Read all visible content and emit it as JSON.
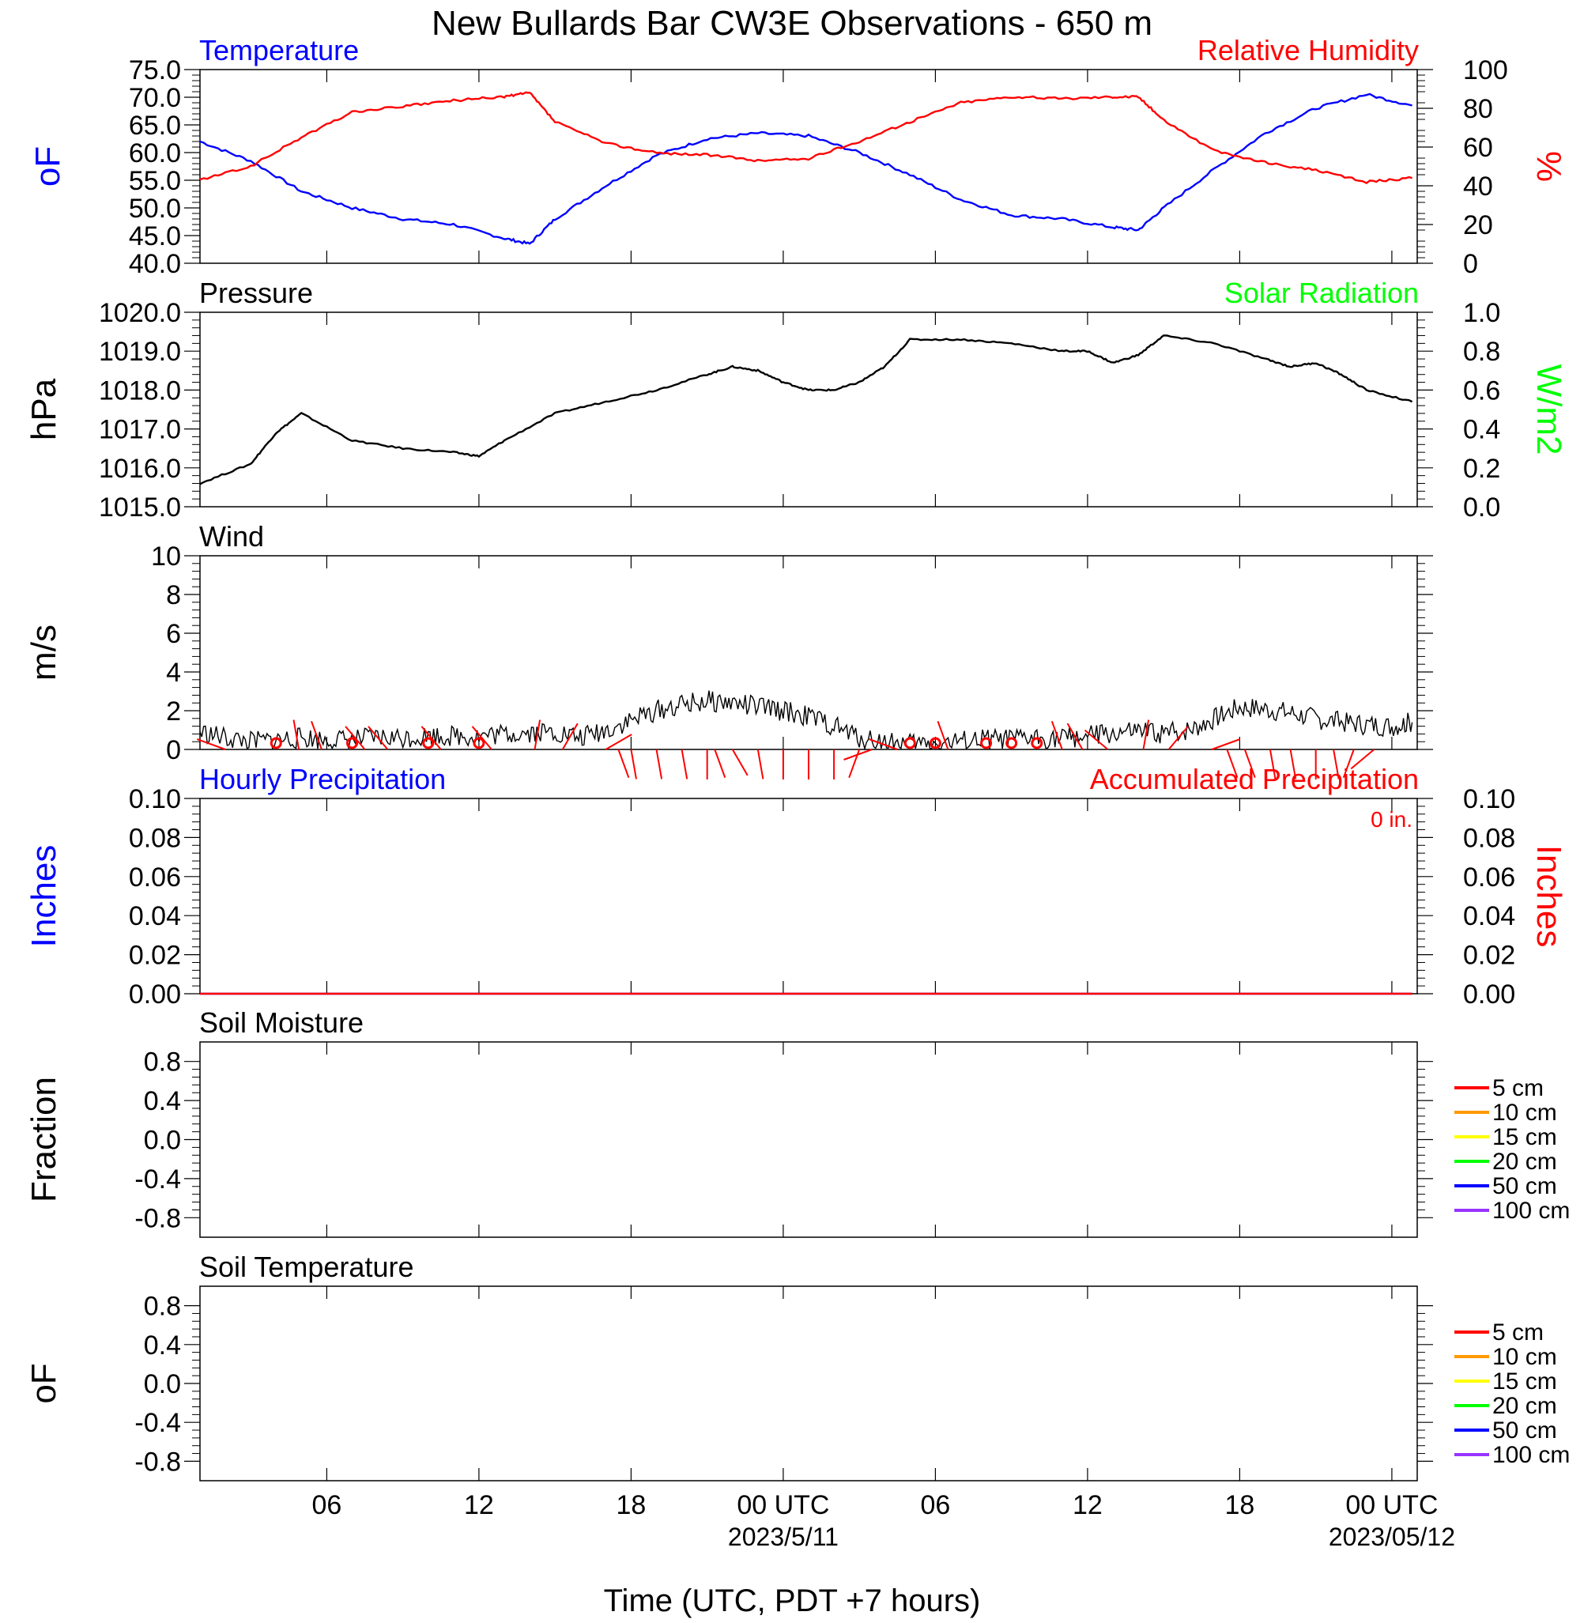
{
  "title": "New Bullards Bar CW3E Observations - 650 m",
  "xlabel": "Time (UTC, PDT +7 hours)",
  "colors": {
    "temperature": "#0000ff",
    "humidity": "#ff0000",
    "pressure": "#000000",
    "solar": "#00ff00",
    "wind": "#000000",
    "wind_barb": "#ff0000",
    "hourly_precip": "#0000ff",
    "accum_precip": "#ff0000"
  },
  "chart_data": [
    {
      "type": "line",
      "title_left": "Temperature",
      "title_right": "Relative Humidity",
      "ylabel_left": "oF",
      "ylabel_right": "%",
      "ylim_left": [
        40,
        75
      ],
      "ylim_right": [
        0,
        100
      ],
      "yticks_left": [
        "75.0",
        "70.0",
        "65.0",
        "60.0",
        "55.0",
        "50.0",
        "45.0",
        "40.0"
      ],
      "yticks_right": [
        "100",
        "80",
        "60",
        "40",
        "20",
        "0"
      ],
      "x_hours": [
        0,
        2,
        4,
        6,
        8,
        10,
        12,
        13,
        14,
        16,
        18,
        20,
        22,
        24,
        26,
        28,
        30,
        32,
        34,
        36,
        37,
        38,
        40,
        42,
        44,
        46,
        47.8
      ],
      "series": [
        {
          "name": "Temperature",
          "axis": "left",
          "values": [
            62,
            58.5,
            53,
            50,
            48,
            47,
            44.5,
            43.5,
            48,
            54,
            59.5,
            62.5,
            63.5,
            63,
            60,
            56,
            51.5,
            48.7,
            48,
            46.5,
            46,
            50,
            57,
            63.5,
            68,
            70.5,
            68.5
          ]
        },
        {
          "name": "Relative Humidity",
          "axis": "right",
          "values": [
            43,
            50,
            65,
            78,
            81,
            84,
            86,
            88,
            73,
            62,
            57,
            56,
            53,
            54,
            63,
            73,
            83,
            86,
            85,
            86,
            86,
            74,
            58,
            52,
            48,
            42,
            44
          ]
        }
      ]
    },
    {
      "type": "line",
      "title_left": "Pressure",
      "title_right": "Solar Radiation",
      "ylabel_left": "hPa",
      "ylabel_right": "W/m2",
      "ylim_left": [
        1015,
        1020
      ],
      "ylim_right": [
        0,
        1
      ],
      "yticks_left": [
        "1020.0",
        "1019.0",
        "1018.0",
        "1017.0",
        "1016.0",
        "1015.0"
      ],
      "yticks_right": [
        "1.0",
        "0.8",
        "0.6",
        "0.4",
        "0.2",
        "0.0"
      ],
      "x_hours": [
        0,
        2,
        3,
        4,
        6,
        8,
        10,
        11,
        12,
        14,
        16,
        18,
        20,
        21,
        22,
        23,
        24,
        25,
        26,
        27,
        28,
        30,
        32,
        34,
        35,
        36,
        37,
        38,
        40,
        42,
        43,
        44,
        45,
        46,
        47.8
      ],
      "series": [
        {
          "name": "Pressure",
          "axis": "left",
          "values": [
            1015.6,
            1016.1,
            1016.9,
            1017.4,
            1016.7,
            1016.5,
            1016.4,
            1016.3,
            1016.7,
            1017.4,
            1017.7,
            1018.0,
            1018.4,
            1018.6,
            1018.5,
            1018.2,
            1018.0,
            1018.0,
            1018.2,
            1018.6,
            1019.3,
            1019.3,
            1019.2,
            1019.0,
            1019.0,
            1018.7,
            1018.9,
            1019.4,
            1019.2,
            1018.8,
            1018.6,
            1018.7,
            1018.4,
            1018.0,
            1017.7
          ]
        }
      ]
    },
    {
      "type": "line",
      "title_left": "Wind",
      "ylabel_left": "m/s",
      "ylim_left": [
        0,
        10
      ],
      "yticks_left": [
        "10",
        "8",
        "6",
        "4",
        "2",
        "0"
      ],
      "x_hours": [
        0,
        1,
        2,
        3,
        4,
        5,
        6,
        7,
        8,
        9,
        10,
        11,
        12,
        13,
        14,
        15,
        16,
        17,
        18,
        19,
        20,
        21,
        22,
        23,
        24,
        25,
        26,
        27,
        28,
        29,
        30,
        31,
        32,
        33,
        34,
        35,
        36,
        37,
        38,
        39,
        40,
        41,
        42,
        43,
        44,
        45,
        46,
        47,
        47.8
      ],
      "series": [
        {
          "name": "Wind",
          "axis": "left",
          "values": [
            0.9,
            0.6,
            0.4,
            0.5,
            0.6,
            0.5,
            0.5,
            0.6,
            0.6,
            0.7,
            0.7,
            0.7,
            0.8,
            0.9,
            0.9,
            0.6,
            1.0,
            1.5,
            2.0,
            2.3,
            2.5,
            2.4,
            2.2,
            2.0,
            1.7,
            1.2,
            0.6,
            0.4,
            0.3,
            0.3,
            0.4,
            0.5,
            0.5,
            0.6,
            0.6,
            0.7,
            0.8,
            0.9,
            0.8,
            1.0,
            1.6,
            2.2,
            2.1,
            1.9,
            1.6,
            1.4,
            1.3,
            1.2,
            1.4
          ]
        }
      ]
    },
    {
      "type": "line",
      "title_left": "Hourly Precipitation",
      "title_right": "Accumulated Precipitation",
      "annotation": "0 in.",
      "ylabel_left": "Inches",
      "ylabel_right": "Inches",
      "ylim_left": [
        0,
        0.1
      ],
      "ylim_right": [
        0,
        0.1
      ],
      "yticks_left": [
        "0.10",
        "0.08",
        "0.06",
        "0.04",
        "0.02",
        "0.00"
      ],
      "yticks_right": [
        "0.10",
        "0.08",
        "0.06",
        "0.04",
        "0.02",
        "0.00"
      ],
      "x_hours": [
        0,
        47.8
      ],
      "series": [
        {
          "name": "Hourly Precipitation",
          "axis": "left",
          "values": [
            0,
            0
          ]
        },
        {
          "name": "Accumulated Precipitation",
          "axis": "right",
          "values": [
            0,
            0
          ]
        }
      ]
    },
    {
      "type": "line",
      "title_left": "Soil Moisture",
      "ylabel_left": "Fraction",
      "ylim_left": [
        -1,
        1
      ],
      "yticks_left": [
        "0.8",
        "0.4",
        "0.0",
        "-0.4",
        "-0.8"
      ],
      "legend": [
        {
          "label": "5 cm",
          "color": "#ff0000"
        },
        {
          "label": "10 cm",
          "color": "#ff9900"
        },
        {
          "label": "15 cm",
          "color": "#ffff00"
        },
        {
          "label": "20 cm",
          "color": "#00ff00"
        },
        {
          "label": "50 cm",
          "color": "#0000ff"
        },
        {
          "label": "100 cm",
          "color": "#9933ff"
        }
      ],
      "series": []
    },
    {
      "type": "line",
      "title_left": "Soil Temperature",
      "ylabel_left": "oF",
      "ylim_left": [
        -1,
        1
      ],
      "yticks_left": [
        "0.8",
        "0.4",
        "0.0",
        "-0.4",
        "-0.8"
      ],
      "legend": [
        {
          "label": "5 cm",
          "color": "#ff0000"
        },
        {
          "label": "10 cm",
          "color": "#ff9900"
        },
        {
          "label": "15 cm",
          "color": "#ffff00"
        },
        {
          "label": "20 cm",
          "color": "#00ff00"
        },
        {
          "label": "50 cm",
          "color": "#0000ff"
        },
        {
          "label": "100 cm",
          "color": "#9933ff"
        }
      ],
      "series": []
    }
  ],
  "x_axis": {
    "xlim_hours": [
      0,
      48
    ],
    "major_ticks": [
      {
        "hour": 5,
        "label": "06",
        "date": ""
      },
      {
        "hour": 11,
        "label": "12",
        "date": ""
      },
      {
        "hour": 17,
        "label": "18",
        "date": ""
      },
      {
        "hour": 23,
        "label": "00 UTC",
        "date": "2023/5/11"
      },
      {
        "hour": 29,
        "label": "06",
        "date": ""
      },
      {
        "hour": 35,
        "label": "12",
        "date": ""
      },
      {
        "hour": 41,
        "label": "18",
        "date": ""
      },
      {
        "hour": 47,
        "label": "00 UTC",
        "date": "2023/05/12"
      }
    ]
  },
  "wind_calm_hours": [
    3,
    6,
    9,
    11,
    28,
    29,
    31,
    32,
    33
  ],
  "wind_barbs": [
    {
      "hour": 1,
      "dir": 290
    },
    {
      "hour": 3.9,
      "dir": 350
    },
    {
      "hour": 4.8,
      "dir": 340
    },
    {
      "hour": 6.5,
      "dir": 320
    },
    {
      "hour": 7.4,
      "dir": 320
    },
    {
      "hour": 9.5,
      "dir": 320
    },
    {
      "hour": 11.5,
      "dir": 320
    },
    {
      "hour": 13.2,
      "dir": 10
    },
    {
      "hour": 14.3,
      "dir": 30
    },
    {
      "hour": 16,
      "dir": 60
    },
    {
      "hour": 16.5,
      "dir": 160
    },
    {
      "hour": 17,
      "dir": 170
    },
    {
      "hour": 18,
      "dir": 170
    },
    {
      "hour": 19,
      "dir": 170
    },
    {
      "hour": 20,
      "dir": 180
    },
    {
      "hour": 20.3,
      "dir": 160
    },
    {
      "hour": 21,
      "dir": 150
    },
    {
      "hour": 22,
      "dir": 170
    },
    {
      "hour": 23,
      "dir": 180
    },
    {
      "hour": 24,
      "dir": 180
    },
    {
      "hour": 25,
      "dir": 180
    },
    {
      "hour": 26,
      "dir": 200
    },
    {
      "hour": 26.5,
      "dir": 250
    },
    {
      "hour": 27.5,
      "dir": 290
    },
    {
      "hour": 29.5,
      "dir": 340
    },
    {
      "hour": 34,
      "dir": 340
    },
    {
      "hour": 34.8,
      "dir": 330
    },
    {
      "hour": 35.8,
      "dir": 310
    },
    {
      "hour": 37.2,
      "dir": 10
    },
    {
      "hour": 38.2,
      "dir": 40
    },
    {
      "hour": 39.9,
      "dir": 70
    },
    {
      "hour": 40.5,
      "dir": 160
    },
    {
      "hour": 41.2,
      "dir": 160
    },
    {
      "hour": 42.2,
      "dir": 170
    },
    {
      "hour": 43,
      "dir": 170
    },
    {
      "hour": 44,
      "dir": 180
    },
    {
      "hour": 44.7,
      "dir": 170
    },
    {
      "hour": 45.5,
      "dir": 200
    },
    {
      "hour": 46.3,
      "dir": 230
    }
  ]
}
